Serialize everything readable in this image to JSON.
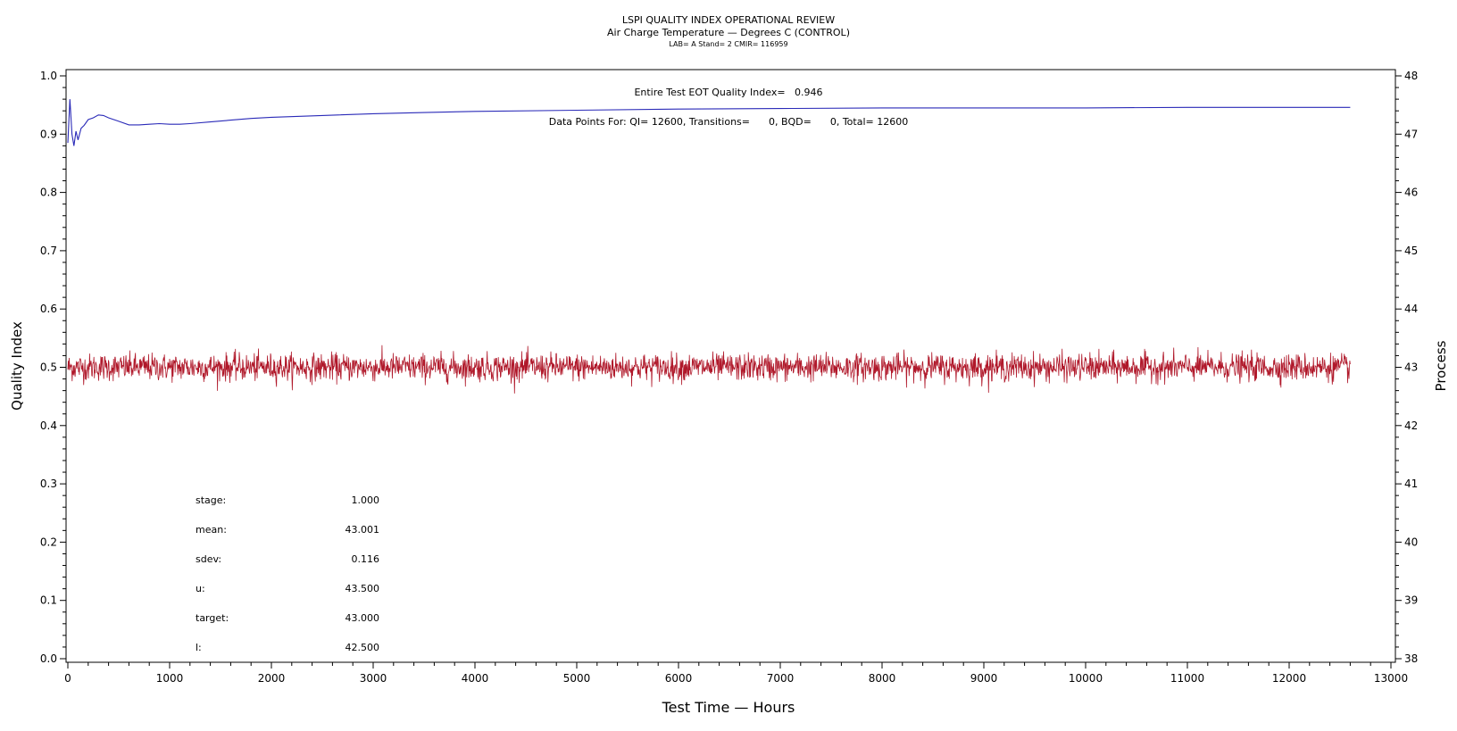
{
  "chart_data": {
    "type": "line",
    "title": "LSPI QUALITY INDEX OPERATIONAL REVIEW",
    "subtitle": "Air Charge Temperature — Degrees C (CONTROL)",
    "subtitle2": "LAB= A Stand= 2 CMIR= 116959",
    "xlabel": "Test Time — Hours",
    "ylabel_left": "Quality Index",
    "ylabel_right": "Process",
    "xlim": [
      0,
      13000
    ],
    "ylim_left": [
      0,
      1
    ],
    "ylim_right": [
      38,
      48
    ],
    "x_ticks": [
      0,
      1000,
      2000,
      3000,
      4000,
      5000,
      6000,
      7000,
      8000,
      9000,
      10000,
      11000,
      12000,
      13000
    ],
    "y_ticks_left": [
      "0.0",
      "0.1",
      "0.2",
      "0.3",
      "0.4",
      "0.5",
      "0.6",
      "0.7",
      "0.8",
      "0.9",
      "1.0"
    ],
    "y_ticks_right": [
      38,
      39,
      40,
      41,
      42,
      43,
      44,
      45,
      46,
      47,
      48
    ],
    "annotations": {
      "qi_line": "Entire Test EOT Quality Index=   0.946",
      "points_line": "Data Points For: QI= 12600, Transitions=      0, BQD=      0, Total= 12600"
    },
    "stats": [
      {
        "label": "stage:",
        "value": "1.000"
      },
      {
        "label": "mean:",
        "value": "43.001"
      },
      {
        "label": "sdev:",
        "value": "0.116"
      },
      {
        "label": "u:",
        "value": "43.500"
      },
      {
        "label": "target:",
        "value": "43.000"
      },
      {
        "label": "l:",
        "value": "42.500"
      }
    ],
    "series": [
      {
        "axis": "left",
        "color": "#2a2ab8",
        "points": [
          [
            0,
            0.885
          ],
          [
            20,
            0.96
          ],
          [
            40,
            0.9
          ],
          [
            60,
            0.88
          ],
          [
            80,
            0.905
          ],
          [
            100,
            0.89
          ],
          [
            130,
            0.91
          ],
          [
            160,
            0.915
          ],
          [
            200,
            0.925
          ],
          [
            250,
            0.928
          ],
          [
            300,
            0.933
          ],
          [
            350,
            0.932
          ],
          [
            400,
            0.928
          ],
          [
            500,
            0.922
          ],
          [
            600,
            0.916
          ],
          [
            700,
            0.916
          ],
          [
            800,
            0.917
          ],
          [
            900,
            0.918
          ],
          [
            1000,
            0.917
          ],
          [
            1100,
            0.917
          ],
          [
            1200,
            0.918
          ],
          [
            1400,
            0.921
          ],
          [
            1600,
            0.924
          ],
          [
            1800,
            0.927
          ],
          [
            2000,
            0.929
          ],
          [
            2500,
            0.932
          ],
          [
            3000,
            0.935
          ],
          [
            3500,
            0.937
          ],
          [
            4000,
            0.939
          ],
          [
            5000,
            0.941
          ],
          [
            6000,
            0.943
          ],
          [
            7000,
            0.944
          ],
          [
            8000,
            0.945
          ],
          [
            9000,
            0.945
          ],
          [
            10000,
            0.945
          ],
          [
            11000,
            0.946
          ],
          [
            12000,
            0.946
          ],
          [
            12600,
            0.946
          ]
        ]
      },
      {
        "axis": "right",
        "color": "#b0182a",
        "mean": 43.0,
        "sdev": 0.116,
        "x_range": [
          0,
          12600
        ],
        "points_count": 12600
      }
    ]
  }
}
